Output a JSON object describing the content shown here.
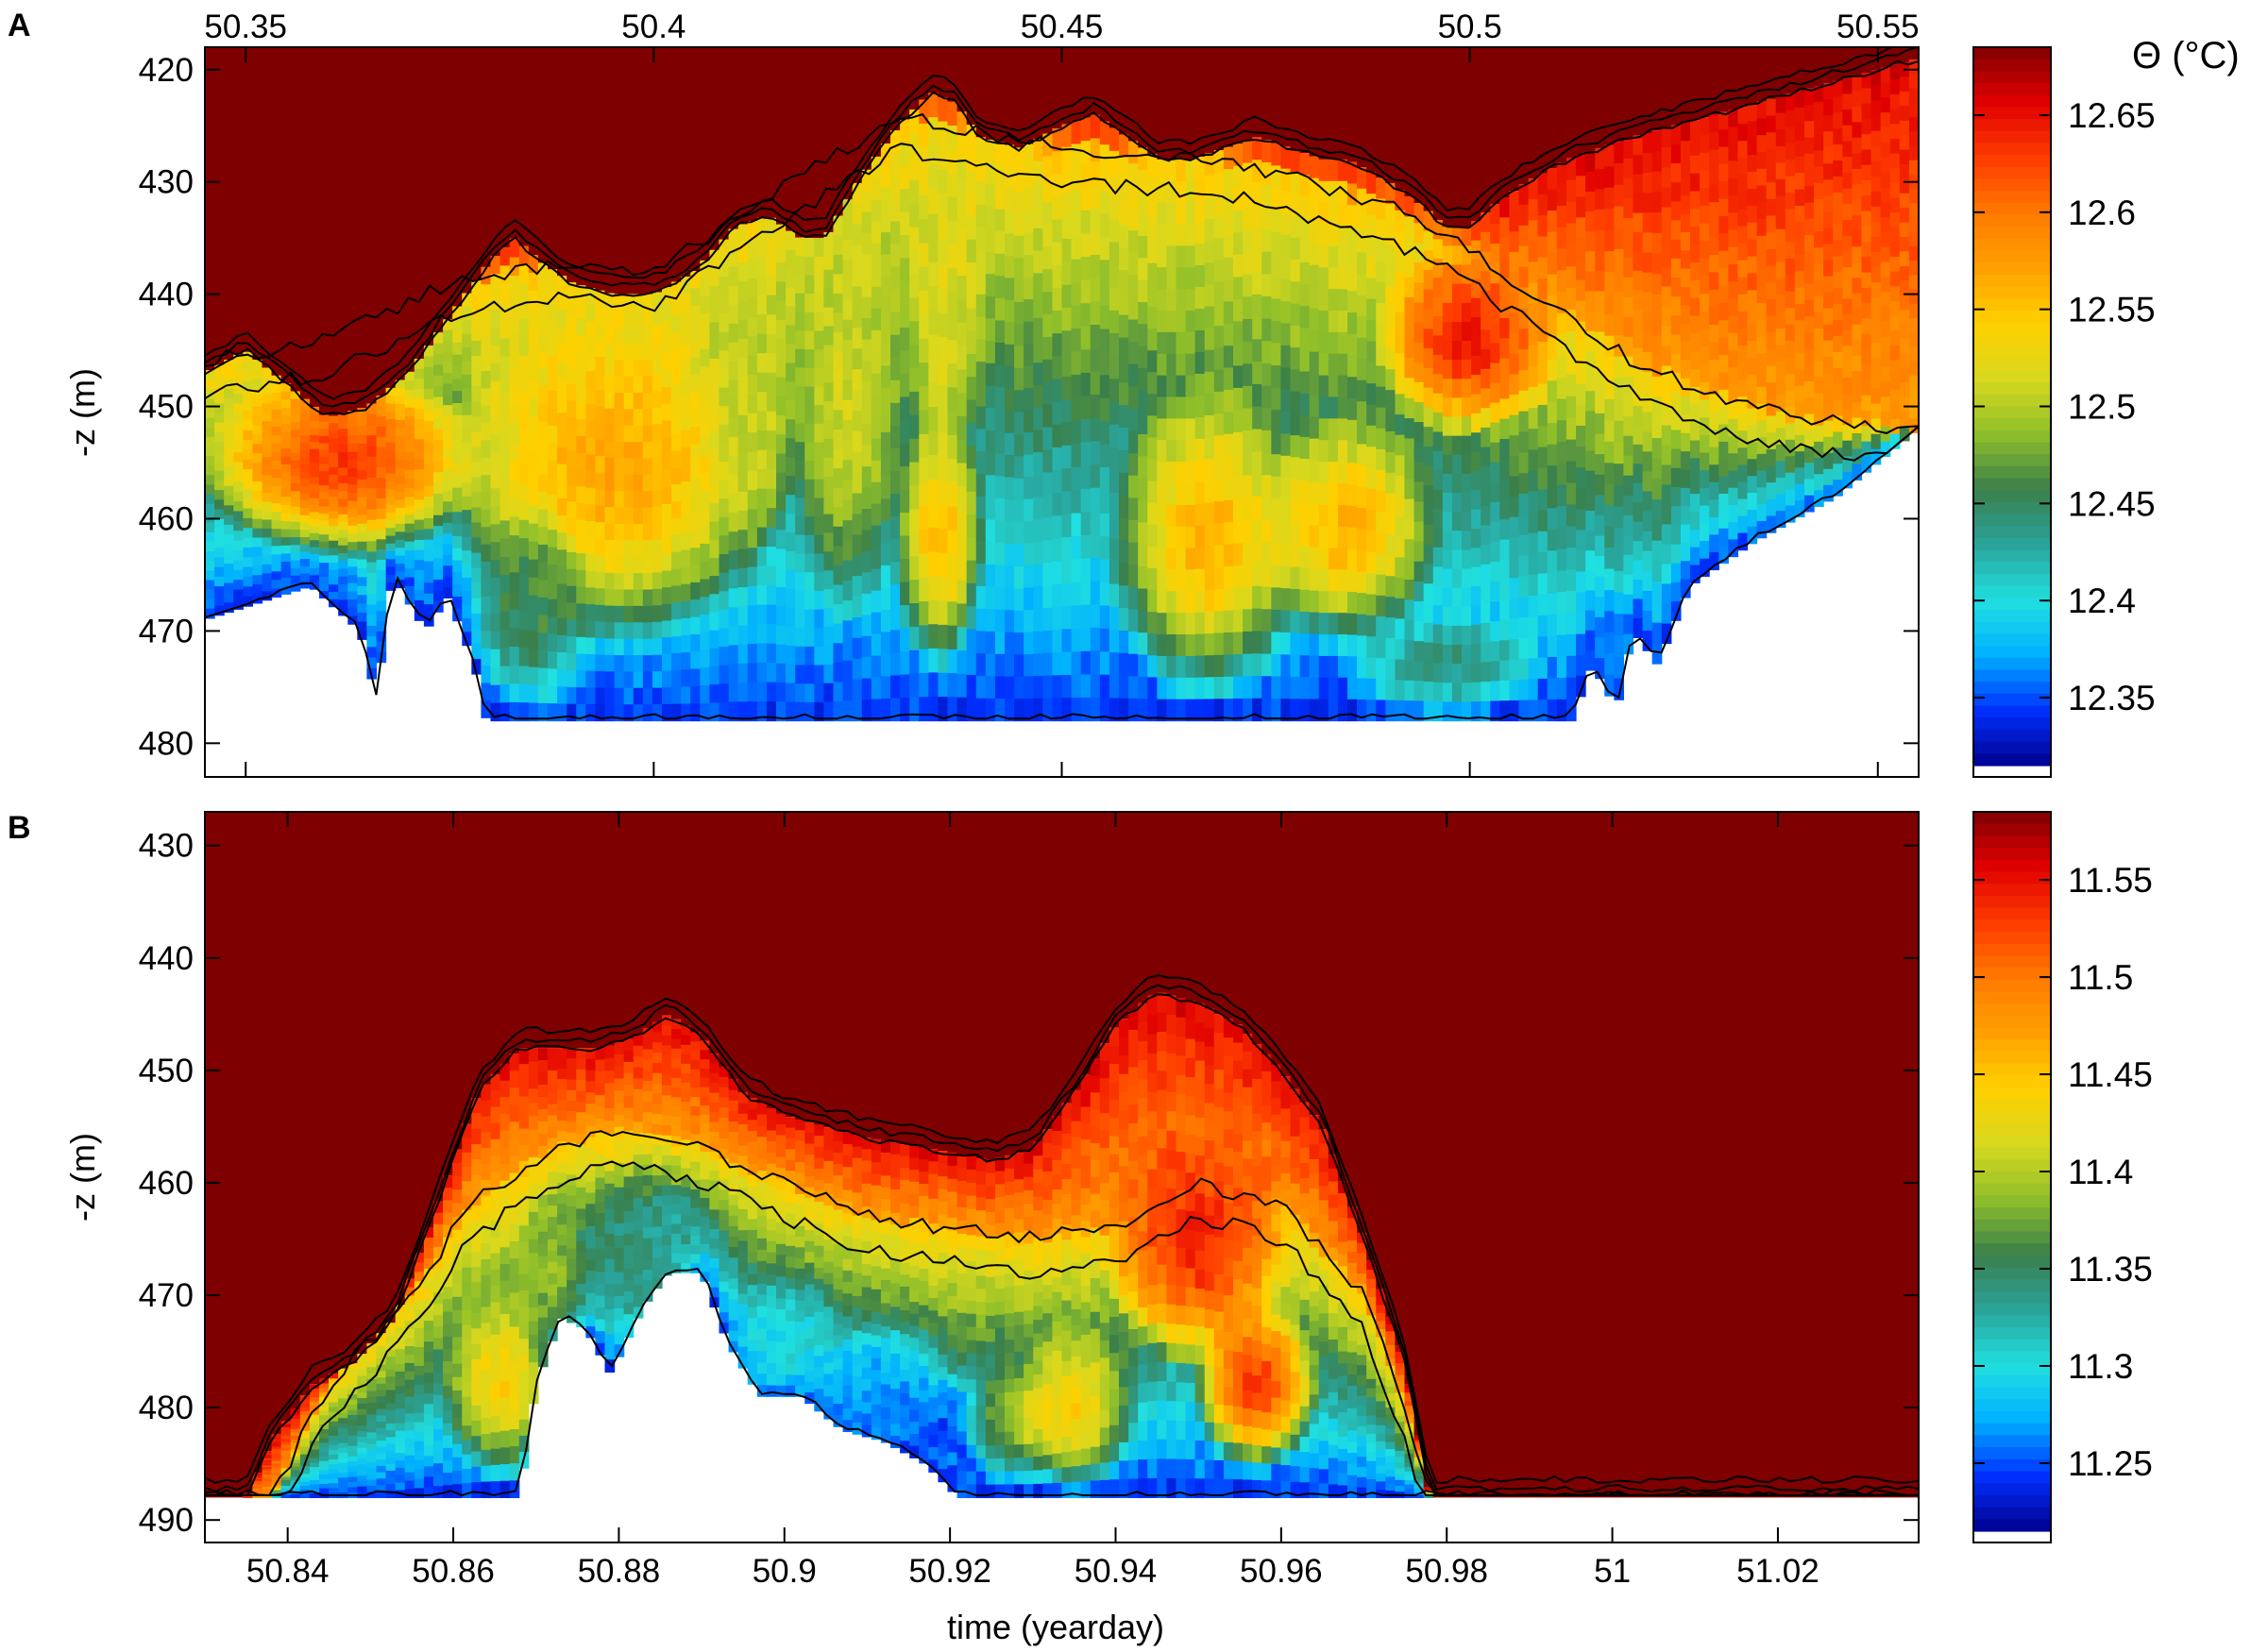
{
  "figure": {
    "panel_labels": [
      "A",
      "B"
    ],
    "colorbar_title": "Θ (°C)"
  },
  "colormap": [
    "#00008f",
    "#0030ff",
    "#00b0ff",
    "#20e0e0",
    "#2aa39a",
    "#3a7f4a",
    "#8fbf2a",
    "#d8d81e",
    "#ffd000",
    "#ffa000",
    "#ff7a00",
    "#ff3b00",
    "#e00000",
    "#7f0000"
  ],
  "chart_data": [
    {
      "type": "heatmap",
      "panel": "A",
      "x_axis_position": "top",
      "xlabel": "",
      "ylabel": "-z (m)",
      "xlim": [
        50.345,
        50.555
      ],
      "ylim": [
        418,
        483
      ],
      "x_ticks": [
        "50.35",
        "50.4",
        "50.45",
        "50.5",
        "50.55"
      ],
      "y_ticks": [
        "420",
        "430",
        "440",
        "450",
        "460",
        "470",
        "480"
      ],
      "colorbar": {
        "ticks": [
          "12.35",
          "12.4",
          "12.45",
          "12.5",
          "12.55",
          "12.6",
          "12.65"
        ],
        "range": [
          12.315,
          12.685
        ]
      },
      "warm_value": 12.685,
      "contour_color": "#000000",
      "bottom_depth": [
        [
          50.345,
          469
        ],
        [
          50.358,
          466
        ],
        [
          50.364,
          470
        ],
        [
          50.366,
          476
        ],
        [
          50.368,
          465
        ],
        [
          50.372,
          470
        ],
        [
          50.3748,
          467
        ],
        [
          50.378,
          473
        ],
        [
          50.3795,
          478
        ],
        [
          50.45,
          478
        ],
        [
          50.465,
          478
        ],
        [
          50.47,
          478
        ],
        [
          50.48,
          478
        ],
        [
          50.492,
          478
        ],
        [
          50.5,
          478
        ],
        [
          50.5125,
          478
        ],
        [
          50.515,
          473
        ],
        [
          50.518,
          477
        ],
        [
          50.52,
          470
        ],
        [
          50.523,
          473
        ],
        [
          50.527,
          466
        ],
        [
          50.535,
          462
        ],
        [
          50.545,
          458
        ],
        [
          50.555,
          452
        ]
      ],
      "interface_top": [
        [
          50.345,
          447
        ],
        [
          50.35,
          445
        ],
        [
          50.355,
          448
        ],
        [
          50.36,
          451
        ],
        [
          50.365,
          450
        ],
        [
          50.37,
          447
        ],
        [
          50.375,
          442
        ],
        [
          50.38,
          437
        ],
        [
          50.383,
          435
        ],
        [
          50.386,
          437
        ],
        [
          50.39,
          439
        ],
        [
          50.395,
          440
        ],
        [
          50.4,
          440
        ],
        [
          50.405,
          438
        ],
        [
          50.41,
          434
        ],
        [
          50.414,
          433
        ],
        [
          50.418,
          435
        ],
        [
          50.421,
          435
        ],
        [
          50.425,
          430
        ],
        [
          50.43,
          425
        ],
        [
          50.434,
          422
        ],
        [
          50.437,
          423
        ],
        [
          50.44,
          426
        ],
        [
          50.445,
          427
        ],
        [
          50.45,
          425
        ],
        [
          50.454,
          424
        ],
        [
          50.458,
          426
        ],
        [
          50.462,
          428
        ],
        [
          50.466,
          428
        ],
        [
          50.47,
          427
        ],
        [
          50.474,
          426
        ],
        [
          50.478,
          427
        ],
        [
          50.482,
          428
        ],
        [
          50.485,
          428
        ],
        [
          50.49,
          430
        ],
        [
          50.494,
          432
        ],
        [
          50.497,
          434
        ],
        [
          50.5,
          434
        ],
        [
          50.503,
          432
        ],
        [
          50.507,
          430
        ],
        [
          50.512,
          428
        ],
        [
          50.52,
          426
        ],
        [
          50.53,
          424
        ],
        [
          50.54,
          422
        ],
        [
          50.55,
          420
        ],
        [
          50.555,
          419
        ]
      ],
      "cold_front": [
        [
          50.345,
          446
        ],
        [
          50.36,
          444
        ],
        [
          50.375,
          439
        ],
        [
          50.39,
          437
        ],
        [
          50.4,
          438
        ],
        [
          50.415,
          431
        ],
        [
          50.43,
          424
        ],
        [
          50.45,
          427
        ],
        [
          50.47,
          428
        ],
        [
          50.49,
          432
        ],
        [
          50.5,
          436
        ],
        [
          50.51,
          441
        ],
        [
          50.52,
          446
        ],
        [
          50.53,
          449
        ],
        [
          50.54,
          451
        ],
        [
          50.555,
          452
        ]
      ],
      "blobs": [
        {
          "x": 50.362,
          "z": 455,
          "rx": 0.018,
          "rz": 9,
          "value": 12.63
        },
        {
          "x": 50.395,
          "z": 456,
          "rx": 0.022,
          "rz": 16,
          "value": 12.565
        },
        {
          "x": 50.385,
          "z": 468,
          "rx": 0.008,
          "rz": 10,
          "value": 12.46
        },
        {
          "x": 50.412,
          "z": 450,
          "rx": 0.006,
          "rz": 14,
          "value": 12.51
        },
        {
          "x": 50.424,
          "z": 450,
          "rx": 0.008,
          "rz": 20,
          "value": 12.51
        },
        {
          "x": 50.4355,
          "z": 440,
          "rx": 0.0055,
          "rz": 18,
          "value": 12.52
        },
        {
          "x": 50.435,
          "z": 462,
          "rx": 0.006,
          "rz": 12,
          "value": 12.56
        },
        {
          "x": 50.468,
          "z": 462,
          "rx": 0.013,
          "rz": 15,
          "value": 12.56
        },
        {
          "x": 50.485,
          "z": 461,
          "rx": 0.012,
          "rz": 11,
          "value": 12.56
        },
        {
          "x": 50.497,
          "z": 473,
          "rx": 0.013,
          "rz": 5,
          "value": 12.44
        },
        {
          "x": 50.517,
          "z": 471,
          "rx": 0.004,
          "rz": 6,
          "value": 12.36
        },
        {
          "x": 50.5,
          "z": 444,
          "rx": 0.012,
          "rz": 9,
          "value": 12.64
        }
      ]
    },
    {
      "type": "heatmap",
      "panel": "B",
      "x_axis_position": "bottom",
      "xlabel": "time (yearday)",
      "ylabel": "-z (m)",
      "xlim": [
        50.83,
        51.037
      ],
      "ylim": [
        427,
        492
      ],
      "x_ticks": [
        "50.84",
        "50.86",
        "50.88",
        "50.9",
        "50.92",
        "50.94",
        "50.96",
        "50.98",
        "51",
        "51.02"
      ],
      "y_ticks": [
        "430",
        "440",
        "450",
        "460",
        "470",
        "480",
        "490"
      ],
      "colorbar": {
        "ticks": [
          "11.25",
          "11.3",
          "11.35",
          "11.4",
          "11.45",
          "11.5",
          "11.55"
        ],
        "range": [
          11.215,
          11.585
        ]
      },
      "warm_value": 11.585,
      "contour_color": "#000000",
      "bottom_depth": [
        [
          50.83,
          488
        ],
        [
          50.868,
          488
        ],
        [
          50.87,
          478
        ],
        [
          50.873,
          472
        ],
        [
          50.876,
          473
        ],
        [
          50.879,
          477
        ],
        [
          50.883,
          471
        ],
        [
          50.886,
          468
        ],
        [
          50.89,
          468
        ],
        [
          50.893,
          474
        ],
        [
          50.897,
          479
        ],
        [
          50.902,
          479
        ],
        [
          50.907,
          482
        ],
        [
          50.912,
          483
        ],
        [
          50.917,
          485
        ],
        [
          50.921,
          488
        ],
        [
          51.037,
          488
        ]
      ],
      "interface_top": [
        [
          50.835,
          488
        ],
        [
          50.838,
          483
        ],
        [
          50.843,
          478
        ],
        [
          50.848,
          476
        ],
        [
          50.853,
          472
        ],
        [
          50.858,
          462
        ],
        [
          50.863,
          452
        ],
        [
          50.868,
          448
        ],
        [
          50.873,
          448
        ],
        [
          50.878,
          448
        ],
        [
          50.882,
          447
        ],
        [
          50.886,
          445
        ],
        [
          50.89,
          447
        ],
        [
          50.895,
          452
        ],
        [
          50.9,
          454
        ],
        [
          50.91,
          456
        ],
        [
          50.918,
          457
        ],
        [
          50.925,
          458
        ],
        [
          50.93,
          457
        ],
        [
          50.935,
          452
        ],
        [
          50.94,
          446
        ],
        [
          50.945,
          443
        ],
        [
          50.95,
          444
        ],
        [
          50.955,
          446
        ],
        [
          50.96,
          450
        ],
        [
          50.965,
          455
        ],
        [
          50.97,
          465
        ],
        [
          50.975,
          476
        ],
        [
          50.978,
          488
        ]
      ],
      "cold_front": [
        [
          50.838,
          488
        ],
        [
          50.845,
          478
        ],
        [
          50.855,
          470
        ],
        [
          50.862,
          462
        ],
        [
          50.872,
          457
        ],
        [
          50.882,
          455
        ],
        [
          50.89,
          457
        ],
        [
          50.9,
          460
        ],
        [
          50.91,
          463
        ],
        [
          50.92,
          464
        ],
        [
          50.93,
          465
        ],
        [
          50.94,
          464
        ],
        [
          50.95,
          460
        ],
        [
          50.96,
          462
        ],
        [
          50.97,
          470
        ],
        [
          50.975,
          480
        ],
        [
          50.978,
          488
        ]
      ],
      "blobs": [
        {
          "x": 50.866,
          "z": 478,
          "rx": 0.008,
          "rz": 9,
          "value": 11.44
        },
        {
          "x": 50.872,
          "z": 468,
          "rx": 0.006,
          "rz": 8,
          "value": 11.39
        },
        {
          "x": 50.882,
          "z": 467,
          "rx": 0.009,
          "rz": 9,
          "value": 11.34
        },
        {
          "x": 50.887,
          "z": 464,
          "rx": 0.005,
          "rz": 4,
          "value": 11.33
        },
        {
          "x": 50.9,
          "z": 474,
          "rx": 0.008,
          "rz": 6,
          "value": 11.3
        },
        {
          "x": 50.912,
          "z": 478,
          "rx": 0.009,
          "rz": 6,
          "value": 11.27
        },
        {
          "x": 50.92,
          "z": 482,
          "rx": 0.009,
          "rz": 5,
          "value": 11.25
        },
        {
          "x": 50.928,
          "z": 481,
          "rx": 0.007,
          "rz": 6,
          "value": 11.39
        },
        {
          "x": 50.935,
          "z": 480,
          "rx": 0.008,
          "rz": 8,
          "value": 11.44
        },
        {
          "x": 50.95,
          "z": 465,
          "rx": 0.012,
          "rz": 12,
          "value": 11.54
        },
        {
          "x": 50.957,
          "z": 478,
          "rx": 0.008,
          "rz": 8,
          "value": 11.53
        }
      ]
    }
  ]
}
